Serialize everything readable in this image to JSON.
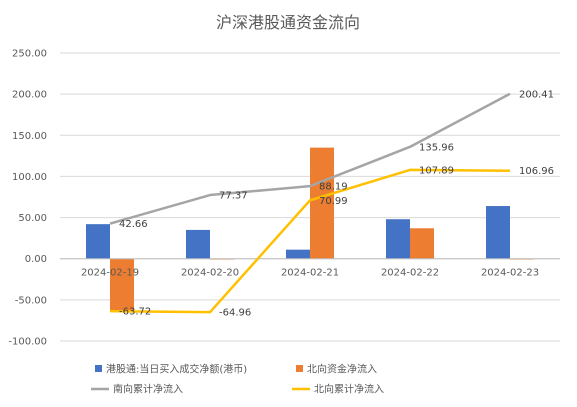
{
  "chart_data": {
    "type": "bar+line",
    "title": "沪深港股通资金流向",
    "categories": [
      "2024-02-19",
      "2024-02-20",
      "2024-02-21",
      "2024-02-22",
      "2024-02-23"
    ],
    "ylim": [
      -100,
      250
    ],
    "yticks": [
      "-100.00",
      "-50.00",
      "0.00",
      "50.00",
      "100.00",
      "150.00",
      "200.00",
      "250.00"
    ],
    "ytick_values": [
      -100,
      -50,
      0,
      50,
      100,
      150,
      200,
      250
    ],
    "grid": true,
    "legend_position": "bottom",
    "series": [
      {
        "name": "港股通:当日买入成交净额(港币)",
        "kind": "bar",
        "color": "#4472C4",
        "values": [
          42,
          35,
          11,
          48,
          64
        ],
        "labels": []
      },
      {
        "name": "北向资金净流入",
        "kind": "bar",
        "color": "#ED7D31",
        "values": [
          -63.72,
          -1,
          135,
          37,
          -1
        ],
        "labels": []
      },
      {
        "name": "南向累计净流入",
        "kind": "line",
        "color": "#A5A5A5",
        "values": [
          42.66,
          77.37,
          88.19,
          135.96,
          200.41
        ],
        "labels": [
          "42.66",
          "77.37",
          "88.19",
          "135.96",
          "200.41"
        ]
      },
      {
        "name": "北向累计净流入",
        "kind": "line",
        "color": "#FFC000",
        "values": [
          -63.72,
          -64.96,
          70.99,
          107.89,
          106.96
        ],
        "labels": [
          "-63.72",
          "-64.96",
          "70.99",
          "107.89",
          "106.96"
        ]
      }
    ]
  }
}
